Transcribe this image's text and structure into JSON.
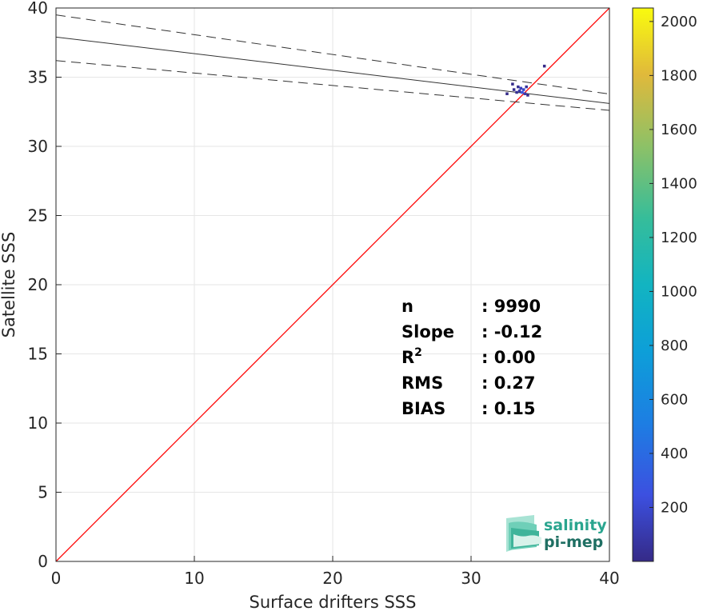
{
  "chart_data": {
    "type": "heatmap",
    "title": "",
    "xlabel": "Surface drifters SSS",
    "ylabel": "Satellite SSS",
    "xlim": [
      0,
      40
    ],
    "ylim": [
      0,
      40
    ],
    "xticks": [
      "0",
      "10",
      "20",
      "30",
      "40"
    ],
    "yticks": [
      "0",
      "5",
      "10",
      "15",
      "20",
      "25",
      "30",
      "35",
      "40"
    ],
    "grid": true,
    "colorbar": {
      "range": [
        0,
        2050
      ],
      "ticks": [
        "200",
        "400",
        "600",
        "800",
        "1000",
        "1200",
        "1400",
        "1600",
        "1800",
        "2000"
      ],
      "colormap": "parula"
    },
    "identity_line": {
      "color": "#ff0000",
      "x": [
        0,
        40
      ],
      "y": [
        0,
        40
      ]
    },
    "fit_line": {
      "intercept": 37.9,
      "slope": -0.12
    },
    "confidence_band": {
      "upper_intercept": 39.5,
      "upper_slope": -0.143,
      "lower_intercept": 36.2,
      "lower_slope": -0.09
    },
    "density_points": [
      {
        "x": 33.1,
        "y": 34.1,
        "count": 20
      },
      {
        "x": 33.3,
        "y": 33.9,
        "count": 40
      },
      {
        "x": 33.5,
        "y": 34.0,
        "count": 90
      },
      {
        "x": 33.6,
        "y": 34.2,
        "count": 150
      },
      {
        "x": 33.7,
        "y": 33.9,
        "count": 260
      },
      {
        "x": 33.8,
        "y": 34.1,
        "count": 180
      },
      {
        "x": 33.9,
        "y": 33.8,
        "count": 110
      },
      {
        "x": 34.0,
        "y": 34.3,
        "count": 60
      },
      {
        "x": 33.4,
        "y": 34.3,
        "count": 30
      },
      {
        "x": 33.0,
        "y": 34.5,
        "count": 5
      },
      {
        "x": 32.6,
        "y": 33.8,
        "count": 5
      },
      {
        "x": 34.1,
        "y": 33.7,
        "count": 10
      },
      {
        "x": 35.3,
        "y": 35.8,
        "count": 3
      }
    ],
    "stats": [
      {
        "label": "n",
        "value": ": 9990"
      },
      {
        "label": "Slope",
        "value": ": -0.12"
      },
      {
        "label": "R",
        "sup": "2",
        "value": ": 0.00"
      },
      {
        "label": "RMS",
        "value": ": 0.27"
      },
      {
        "label": "BIAS",
        "value": ": 0.15"
      }
    ]
  },
  "logo": {
    "line1": "salinity",
    "line2": "pi-mep"
  }
}
